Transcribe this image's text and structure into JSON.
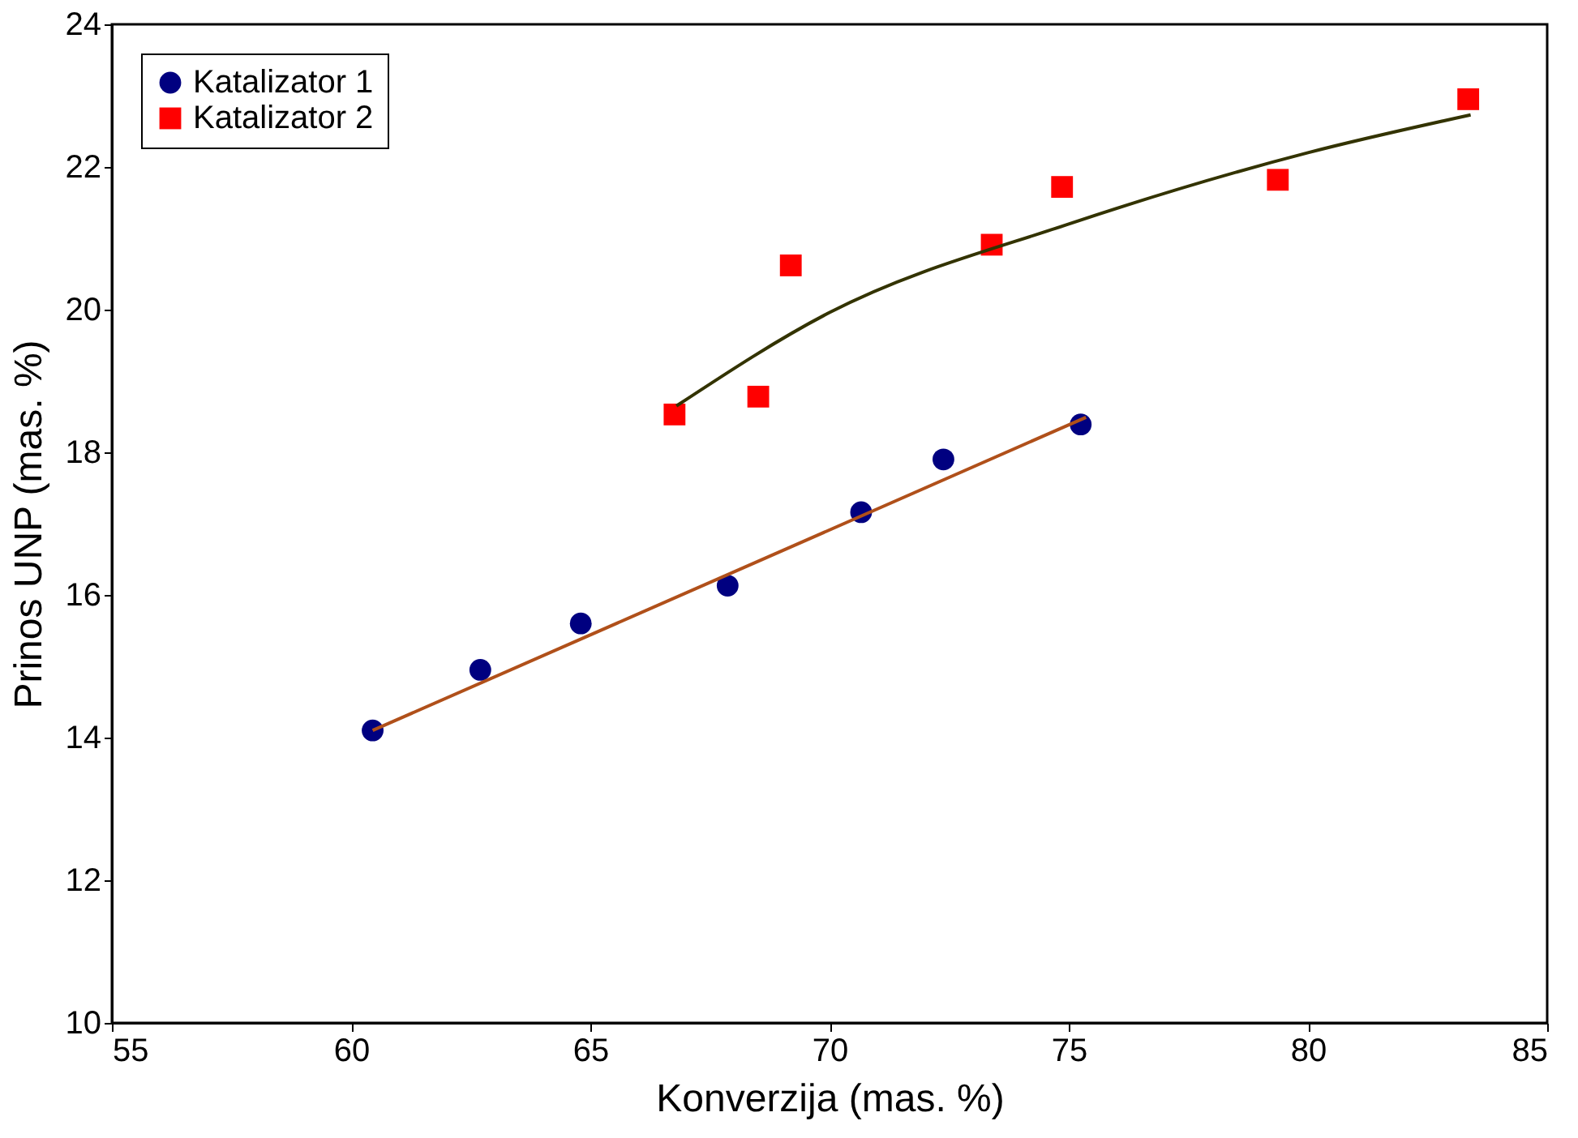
{
  "chart_data": {
    "type": "scatter",
    "xlabel": "Konverzija (mas. %)",
    "ylabel": "Prinos UNP (mas. %)",
    "xlim": [
      55,
      85
    ],
    "xticks": [
      55,
      60,
      65,
      70,
      75,
      80,
      85
    ],
    "ylim": [
      10,
      24
    ],
    "yticks": [
      10,
      12,
      14,
      16,
      18,
      20,
      22,
      24
    ],
    "grid": false,
    "legend": "top left",
    "series": [
      {
        "name": "Katalizator 1",
        "marker": "circle",
        "color": "#000080",
        "x": [
          60.45,
          62.7,
          64.8,
          67.87,
          70.66,
          72.38,
          75.25
        ],
        "values": [
          14.1,
          14.95,
          15.6,
          16.13,
          17.16,
          17.9,
          18.39
        ]
      },
      {
        "name": "Katalizator 2",
        "marker": "square",
        "color": "#ff0000",
        "x": [
          66.76,
          68.51,
          69.19,
          73.39,
          74.86,
          79.37,
          83.35
        ],
        "values": [
          18.53,
          18.78,
          20.62,
          20.91,
          21.72,
          21.82,
          22.95
        ]
      },
      {
        "type": "line",
        "color": "#b0501a",
        "x": [
          60.45,
          75.36
        ],
        "values": [
          14.1,
          18.49
        ]
      },
      {
        "type": "line",
        "color": "#333300",
        "x": [
          66.8,
          70,
          75,
          80,
          83.4
        ],
        "values": [
          18.65,
          19.96,
          21.2,
          22.2,
          22.73
        ]
      }
    ]
  }
}
